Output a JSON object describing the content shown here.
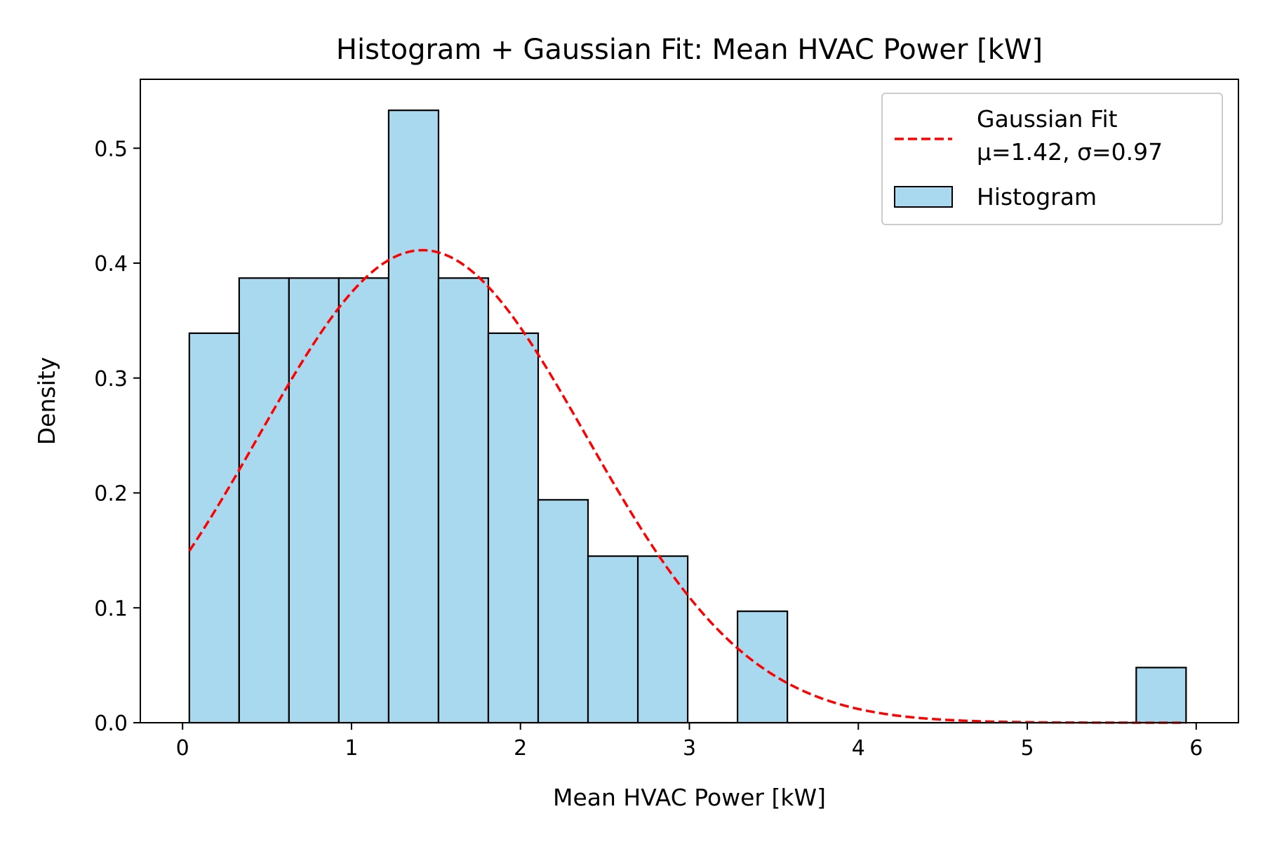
{
  "chart_data": {
    "type": "bar",
    "title": "Histogram + Gaussian Fit: Mean HVAC Power [kW]",
    "xlabel": "Mean HVAC Power [kW]",
    "ylabel": "Density",
    "xlim": [
      -0.25,
      6.25
    ],
    "ylim": [
      0,
      0.56
    ],
    "xticks": [
      0,
      1,
      2,
      3,
      4,
      5,
      6
    ],
    "yticks": [
      0.0,
      0.1,
      0.2,
      0.3,
      0.4,
      0.5
    ],
    "xtick_labels": [
      "0",
      "1",
      "2",
      "3",
      "4",
      "5",
      "6"
    ],
    "ytick_labels": [
      "0.0",
      "0.1",
      "0.2",
      "0.3",
      "0.4",
      "0.5"
    ],
    "bin_edges": [
      0.04,
      0.335,
      0.63,
      0.925,
      1.22,
      1.515,
      1.81,
      2.105,
      2.4,
      2.695,
      2.99,
      3.285,
      3.58,
      3.875,
      4.17,
      4.465,
      4.76,
      5.055,
      5.35,
      5.645,
      5.94
    ],
    "series": [
      {
        "name": "Histogram",
        "kind": "histogram",
        "values": [
          0.339,
          0.387,
          0.387,
          0.387,
          0.533,
          0.387,
          0.339,
          0.194,
          0.145,
          0.145,
          0.0,
          0.097,
          0.0,
          0.0,
          0.0,
          0.0,
          0.0,
          0.0,
          0.0,
          0.048
        ],
        "color": "#a8d9ef",
        "edgecolor": "#000000"
      },
      {
        "name": "Gaussian Fit\nμ=1.42, σ=0.97",
        "kind": "gaussian",
        "mu": 1.42,
        "sigma": 0.97,
        "x_range": [
          0.04,
          5.94
        ],
        "color": "#ff0000",
        "linestyle": "dashed"
      }
    ],
    "legend": {
      "placement": "top-right",
      "entries": [
        {
          "lines": [
            "Gaussian Fit",
            "μ=1.42, σ=0.97"
          ],
          "type": "line"
        },
        {
          "lines": [
            "Histogram"
          ],
          "type": "patch"
        }
      ]
    },
    "grid": false
  }
}
